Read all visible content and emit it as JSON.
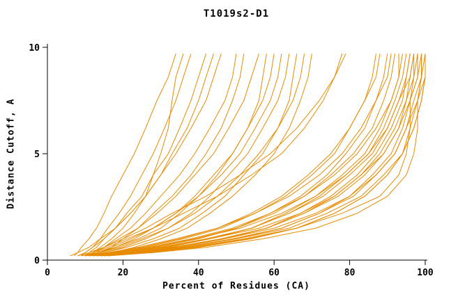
{
  "chart_data": {
    "type": "line",
    "title": "T1019s2-D1",
    "xlabel": "Percent of Residues (CA)",
    "ylabel": "Distance Cutoff, A",
    "xlim": [
      0,
      100
    ],
    "ylim": [
      0,
      10
    ],
    "x_ticks": [
      0,
      20,
      40,
      60,
      80,
      100
    ],
    "y_ticks": [
      0,
      5,
      10
    ],
    "grid": false,
    "legend": "none",
    "line_color": "#e78b00",
    "axis_color": "#000000",
    "y_samples": [
      0.2,
      0.35,
      0.6,
      1.0,
      1.5,
      2.2,
      3.0,
      4.0,
      5.0,
      6.2,
      7.5,
      8.6,
      9.7
    ],
    "series_x": [
      [
        7,
        8,
        9,
        11,
        13,
        15,
        17,
        20,
        23,
        26,
        29,
        32,
        34
      ],
      [
        9,
        10,
        12,
        14,
        16,
        19,
        22,
        25,
        28,
        31,
        34,
        36,
        38
      ],
      [
        10,
        11,
        13,
        15,
        18,
        21,
        25,
        28,
        32,
        35,
        38,
        40,
        42
      ],
      [
        8,
        10,
        12,
        15,
        18,
        22,
        26,
        30,
        34,
        38,
        42,
        44,
        46
      ],
      [
        11,
        13,
        15,
        18,
        22,
        26,
        30,
        35,
        39,
        43,
        47,
        49,
        50
      ],
      [
        12,
        14,
        17,
        20,
        24,
        28,
        33,
        38,
        42,
        46,
        49,
        51,
        52
      ],
      [
        10,
        12,
        14,
        17,
        20,
        23,
        26,
        28,
        30,
        32,
        33,
        34,
        36
      ],
      [
        6,
        8,
        11,
        14,
        18,
        22,
        26,
        30,
        33,
        37,
        40,
        42,
        44
      ],
      [
        10,
        12,
        15,
        19,
        24,
        29,
        34,
        39,
        44,
        48,
        52,
        54,
        56
      ],
      [
        11,
        14,
        18,
        23,
        28,
        34,
        39,
        44,
        49,
        53,
        57,
        59,
        60
      ],
      [
        12,
        15,
        20,
        26,
        32,
        38,
        43,
        48,
        53,
        57,
        61,
        63,
        64
      ],
      [
        10,
        14,
        19,
        25,
        32,
        39,
        45,
        51,
        56,
        61,
        65,
        67,
        68
      ],
      [
        13,
        17,
        23,
        30,
        37,
        43,
        49,
        55,
        60,
        64,
        67,
        69,
        70
      ],
      [
        9,
        13,
        18,
        24,
        30,
        35,
        40,
        45,
        49,
        53,
        56,
        57,
        58
      ],
      [
        11,
        15,
        21,
        28,
        35,
        41,
        47,
        52,
        57,
        61,
        64,
        65,
        66
      ],
      [
        10,
        13,
        17,
        22,
        28,
        34,
        40,
        46,
        51,
        55,
        59,
        61,
        62
      ],
      [
        12,
        18,
        26,
        36,
        46,
        55,
        63,
        70,
        76,
        80,
        84,
        86,
        87
      ],
      [
        11,
        17,
        25,
        35,
        45,
        54,
        62,
        69,
        75,
        80,
        84,
        87,
        88
      ],
      [
        13,
        20,
        29,
        40,
        50,
        59,
        67,
        74,
        79,
        84,
        87,
        89,
        90
      ],
      [
        10,
        16,
        24,
        34,
        45,
        55,
        64,
        72,
        78,
        83,
        87,
        90,
        91
      ],
      [
        12,
        19,
        28,
        39,
        50,
        60,
        68,
        75,
        81,
        86,
        89,
        91,
        92
      ],
      [
        14,
        22,
        32,
        43,
        54,
        63,
        71,
        78,
        84,
        88,
        91,
        93,
        93
      ],
      [
        11,
        18,
        27,
        38,
        49,
        59,
        68,
        76,
        82,
        87,
        91,
        93,
        94
      ],
      [
        13,
        21,
        31,
        43,
        54,
        64,
        72,
        79,
        85,
        89,
        92,
        94,
        95
      ],
      [
        15,
        24,
        35,
        47,
        58,
        67,
        75,
        82,
        87,
        91,
        94,
        95,
        96
      ],
      [
        12,
        20,
        30,
        42,
        54,
        64,
        73,
        80,
        86,
        90,
        93,
        95,
        96
      ],
      [
        14,
        23,
        34,
        46,
        58,
        68,
        76,
        83,
        88,
        92,
        95,
        96,
        97
      ],
      [
        10,
        17,
        27,
        39,
        51,
        62,
        71,
        79,
        85,
        90,
        93,
        96,
        97
      ],
      [
        13,
        22,
        33,
        46,
        58,
        68,
        77,
        84,
        89,
        93,
        95,
        97,
        98
      ],
      [
        15,
        25,
        37,
        50,
        62,
        72,
        80,
        86,
        91,
        94,
        96,
        98,
        98
      ],
      [
        11,
        19,
        30,
        43,
        56,
        67,
        76,
        83,
        89,
        93,
        96,
        98,
        99
      ],
      [
        14,
        24,
        36,
        49,
        62,
        72,
        81,
        87,
        92,
        95,
        97,
        99,
        99
      ],
      [
        12,
        21,
        33,
        47,
        60,
        71,
        80,
        87,
        92,
        95,
        98,
        99,
        100
      ],
      [
        16,
        27,
        40,
        54,
        66,
        76,
        84,
        90,
        94,
        96,
        98,
        100,
        100
      ],
      [
        13,
        23,
        36,
        50,
        64,
        74,
        83,
        89,
        94,
        97,
        99,
        100,
        100
      ],
      [
        15,
        26,
        39,
        53,
        66,
        76,
        84,
        90,
        94,
        97,
        99,
        100,
        100
      ],
      [
        14,
        25,
        38,
        52,
        66,
        78,
        88,
        93,
        95,
        96,
        96,
        97,
        97
      ],
      [
        16,
        28,
        42,
        57,
        71,
        82,
        90,
        95,
        97,
        98,
        98,
        99,
        99
      ],
      [
        9,
        12,
        16,
        21,
        28,
        36,
        45,
        54,
        62,
        68,
        73,
        76,
        78
      ],
      [
        8,
        11,
        15,
        20,
        26,
        33,
        42,
        51,
        59,
        66,
        72,
        76,
        79
      ]
    ]
  }
}
